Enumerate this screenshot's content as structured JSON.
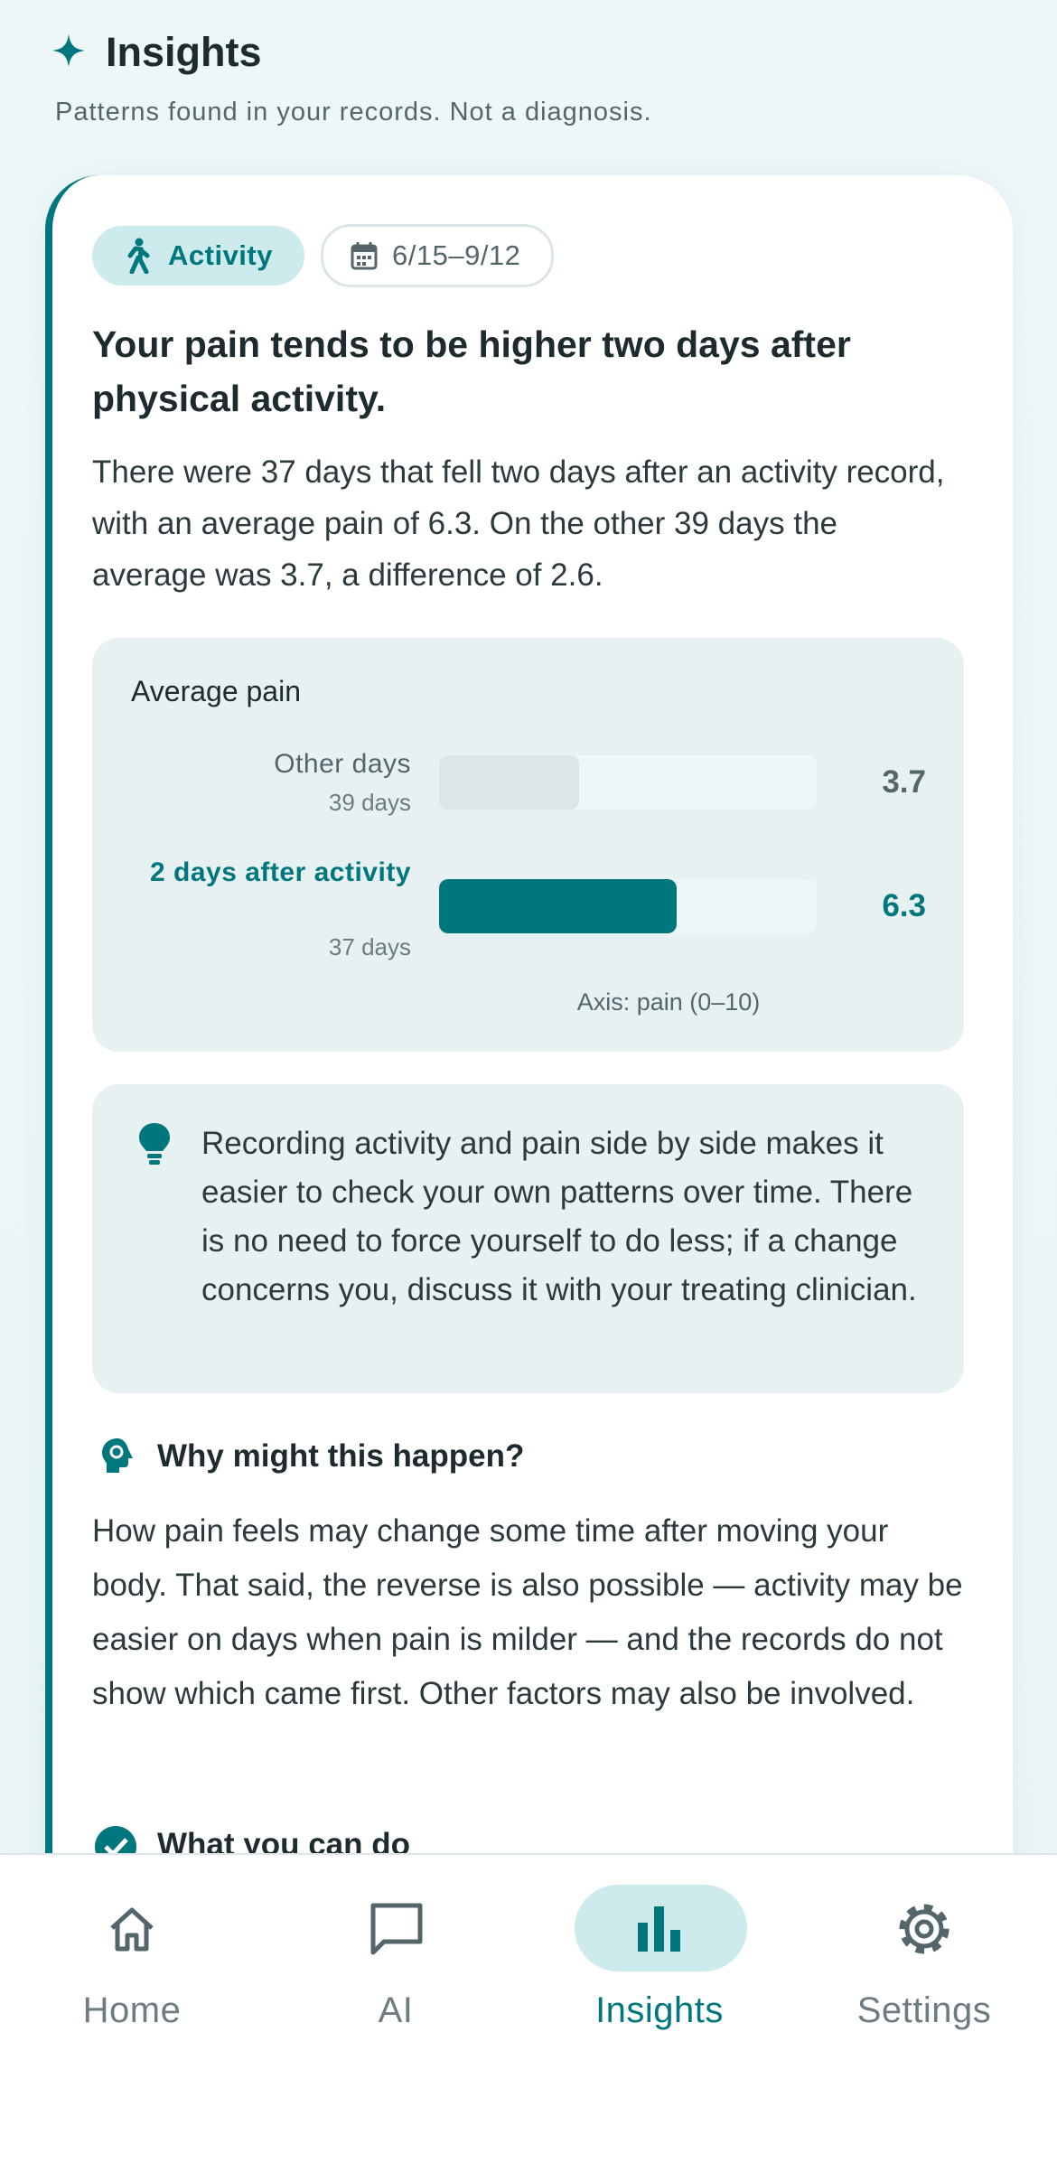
{
  "header": {
    "title": "Insights",
    "subtitle": "Patterns found in your records. Not a diagnosis."
  },
  "card": {
    "category_chip": "Activity",
    "date_chip": "6/15–9/12",
    "heading": "Your pain tends to be higher two days after physical activity.",
    "body": "There were 37 days that fell two days after an activity record, with an average pain of 6.3. On the other 39 days the average was 3.7, a difference of 2.6.",
    "chart": {
      "type": "bar",
      "orientation": "horizontal",
      "title": "Average pain",
      "categories": [
        "Other days",
        "2 days after activity"
      ],
      "sublabels": [
        "39 days",
        "37 days"
      ],
      "values": [
        3.7,
        6.3
      ],
      "colors": [
        "#dde5e7",
        "#00777d"
      ],
      "xlim": [
        0,
        10
      ],
      "axis_label": "Axis: pain (0–10)"
    },
    "tip": "Recording activity and pain side by side makes it easier to check your own patterns over time. There is no need to force yourself to do less; if a change concerns you, discuss it with your treating clinician.",
    "why_title": "Why might this happen?",
    "why_body": "How pain feels may change some time after moving your body. That said, the reverse is also possible — activity may be easier on days when pain is milder — and the records do not show which came first. Other factors may also be involved.",
    "next_title": "What you can do"
  },
  "nav": {
    "items": [
      {
        "label": "Home"
      },
      {
        "label": "AI"
      },
      {
        "label": "Insights",
        "selected": true
      },
      {
        "label": "Settings"
      }
    ]
  }
}
